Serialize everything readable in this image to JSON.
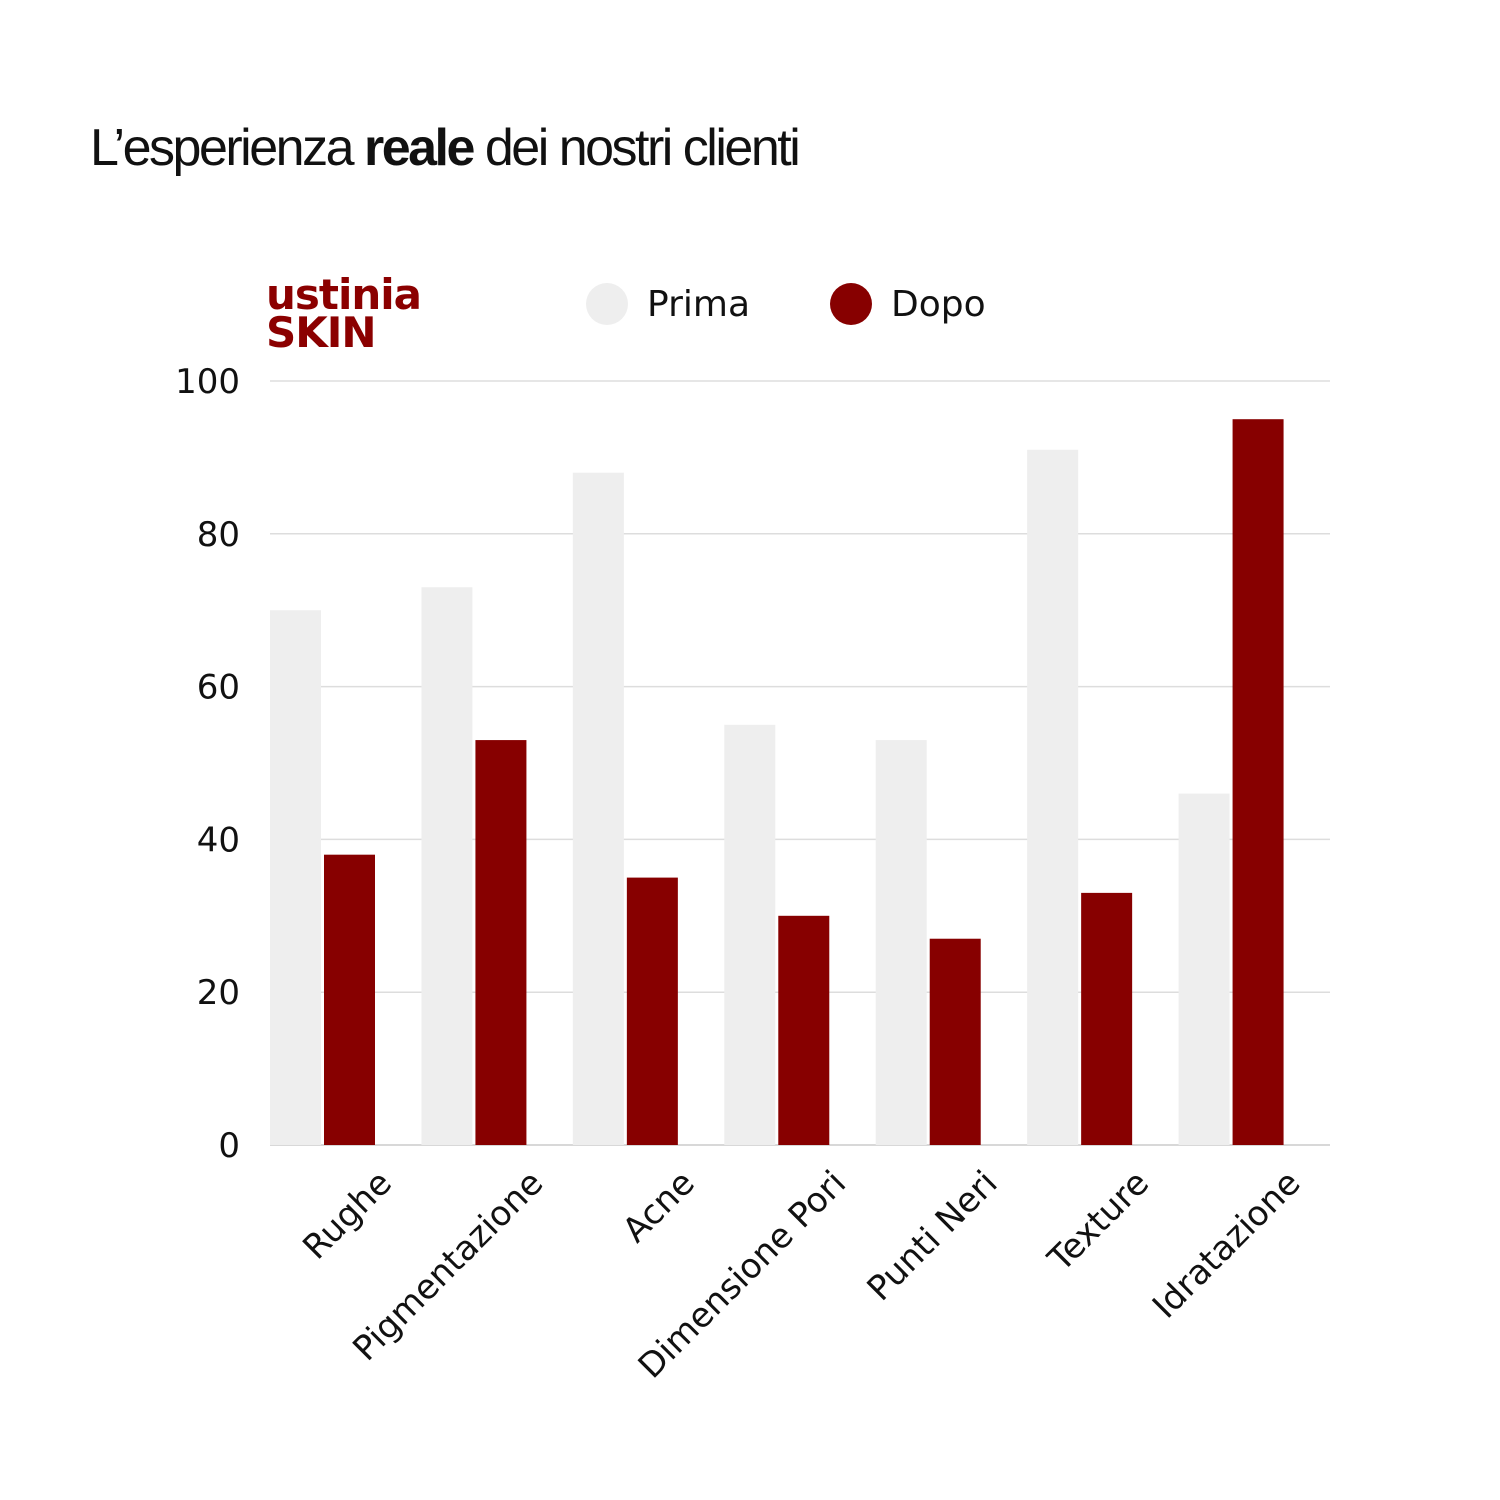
{
  "heading": {
    "pre": "L’esperienza ",
    "bold": "reale",
    "post": " dei nostri clienti"
  },
  "logo": {
    "line1": "ustinia",
    "line2": "SKIN"
  },
  "chart_data": {
    "type": "bar",
    "categories": [
      "Rughe",
      "Pigmentazione",
      "Acne",
      "Dimensione Pori",
      "Punti Neri",
      "Texture",
      "Idratazione"
    ],
    "series": [
      {
        "name": "Prima",
        "color": "#eeeeee",
        "values": [
          70,
          73,
          88,
          55,
          53,
          91,
          46
        ]
      },
      {
        "name": "Dopo",
        "color": "#870000",
        "values": [
          38,
          53,
          35,
          30,
          27,
          33,
          95
        ]
      }
    ],
    "yticks": [
      0,
      20,
      40,
      60,
      80,
      100
    ],
    "ylim": [
      0,
      100
    ],
    "grid": true,
    "legend": "top"
  }
}
